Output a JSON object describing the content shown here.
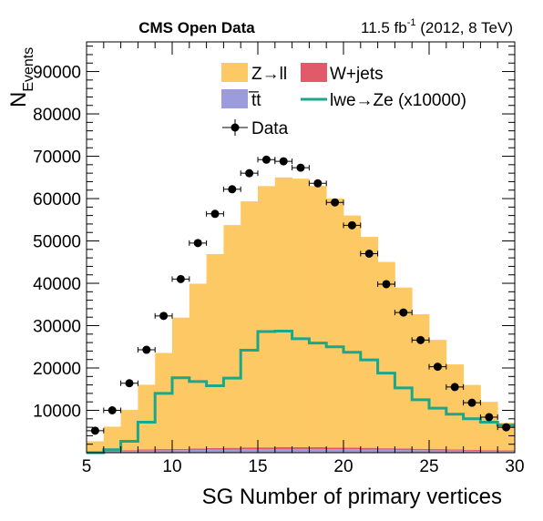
{
  "header": {
    "left_title": "CMS Open Data",
    "lumi_value": "11.5 fb",
    "lumi_exponent": "-1",
    "lumi_rest": " (2012, 8 TeV)"
  },
  "axes": {
    "x_label": "SG Number of primary vertices",
    "y_label_main": "N",
    "y_label_sub": "Events"
  },
  "legend": {
    "zll": "Z→ll",
    "wjets": "W+jets",
    "ttbar": "t̅t",
    "signal": "lwe→Ze (x10000)",
    "data": "Data"
  },
  "colors": {
    "zll": "#fdc964",
    "wjets": "#e05a6a",
    "ttbar": "#9c9cdc",
    "signal": "#1aa78a",
    "data": "#000000"
  },
  "chart_data": {
    "type": "bar",
    "stacked": true,
    "bin_edges": [
      5,
      6,
      7,
      8,
      9,
      10,
      11,
      12,
      13,
      14,
      15,
      16,
      17,
      18,
      19,
      20,
      21,
      22,
      23,
      24,
      25,
      26,
      27,
      28,
      29,
      30
    ],
    "xlim": [
      5,
      30
    ],
    "ylim": [
      0,
      97000
    ],
    "x_ticks": [
      5,
      10,
      15,
      20,
      25,
      30
    ],
    "y_ticks": [
      10000,
      20000,
      30000,
      40000,
      50000,
      60000,
      70000,
      80000,
      90000
    ],
    "series": [
      {
        "name": "t̅t",
        "kind": "stack",
        "values": [
          200,
          300,
          400,
          500,
          550,
          600,
          650,
          700,
          750,
          800,
          800,
          850,
          850,
          850,
          800,
          800,
          750,
          700,
          650,
          600,
          550,
          500,
          450,
          400,
          350
        ]
      },
      {
        "name": "W+jets",
        "kind": "stack",
        "values": [
          100,
          150,
          200,
          250,
          300,
          300,
          350,
          400,
          400,
          450,
          450,
          450,
          450,
          450,
          400,
          400,
          400,
          350,
          350,
          300,
          300,
          250,
          250,
          200,
          200
        ]
      },
      {
        "name": "Z→ll",
        "kind": "stack",
        "values": [
          2400,
          5700,
          9500,
          15300,
          22700,
          31000,
          38900,
          45800,
          52600,
          58100,
          61700,
          63700,
          63400,
          61700,
          58800,
          54800,
          49800,
          44000,
          38000,
          31800,
          25800,
          20100,
          15300,
          11400,
          6500
        ]
      },
      {
        "name": "lwe→Ze (x10000)",
        "kind": "line",
        "values": [
          0,
          700,
          2700,
          7200,
          14000,
          17700,
          16800,
          15800,
          17600,
          24200,
          28600,
          28700,
          26900,
          25900,
          25000,
          23700,
          21900,
          18800,
          15300,
          12500,
          10500,
          9100,
          8000,
          7200,
          6500
        ]
      },
      {
        "name": "Data",
        "kind": "points",
        "x": [
          5.5,
          6.5,
          7.5,
          8.5,
          9.5,
          10.5,
          11.5,
          12.5,
          13.5,
          14.5,
          15.5,
          16.5,
          17.5,
          18.5,
          19.5,
          20.5,
          21.5,
          22.5,
          23.5,
          24.5,
          25.5,
          26.5,
          27.5,
          28.5,
          29.5
        ],
        "values": [
          5200,
          10000,
          16400,
          24300,
          32300,
          41000,
          49500,
          56400,
          62200,
          66000,
          69200,
          68800,
          67300,
          63600,
          59100,
          53700,
          47000,
          39800,
          33100,
          26600,
          20300,
          15500,
          11800,
          8400,
          6000
        ]
      }
    ]
  }
}
